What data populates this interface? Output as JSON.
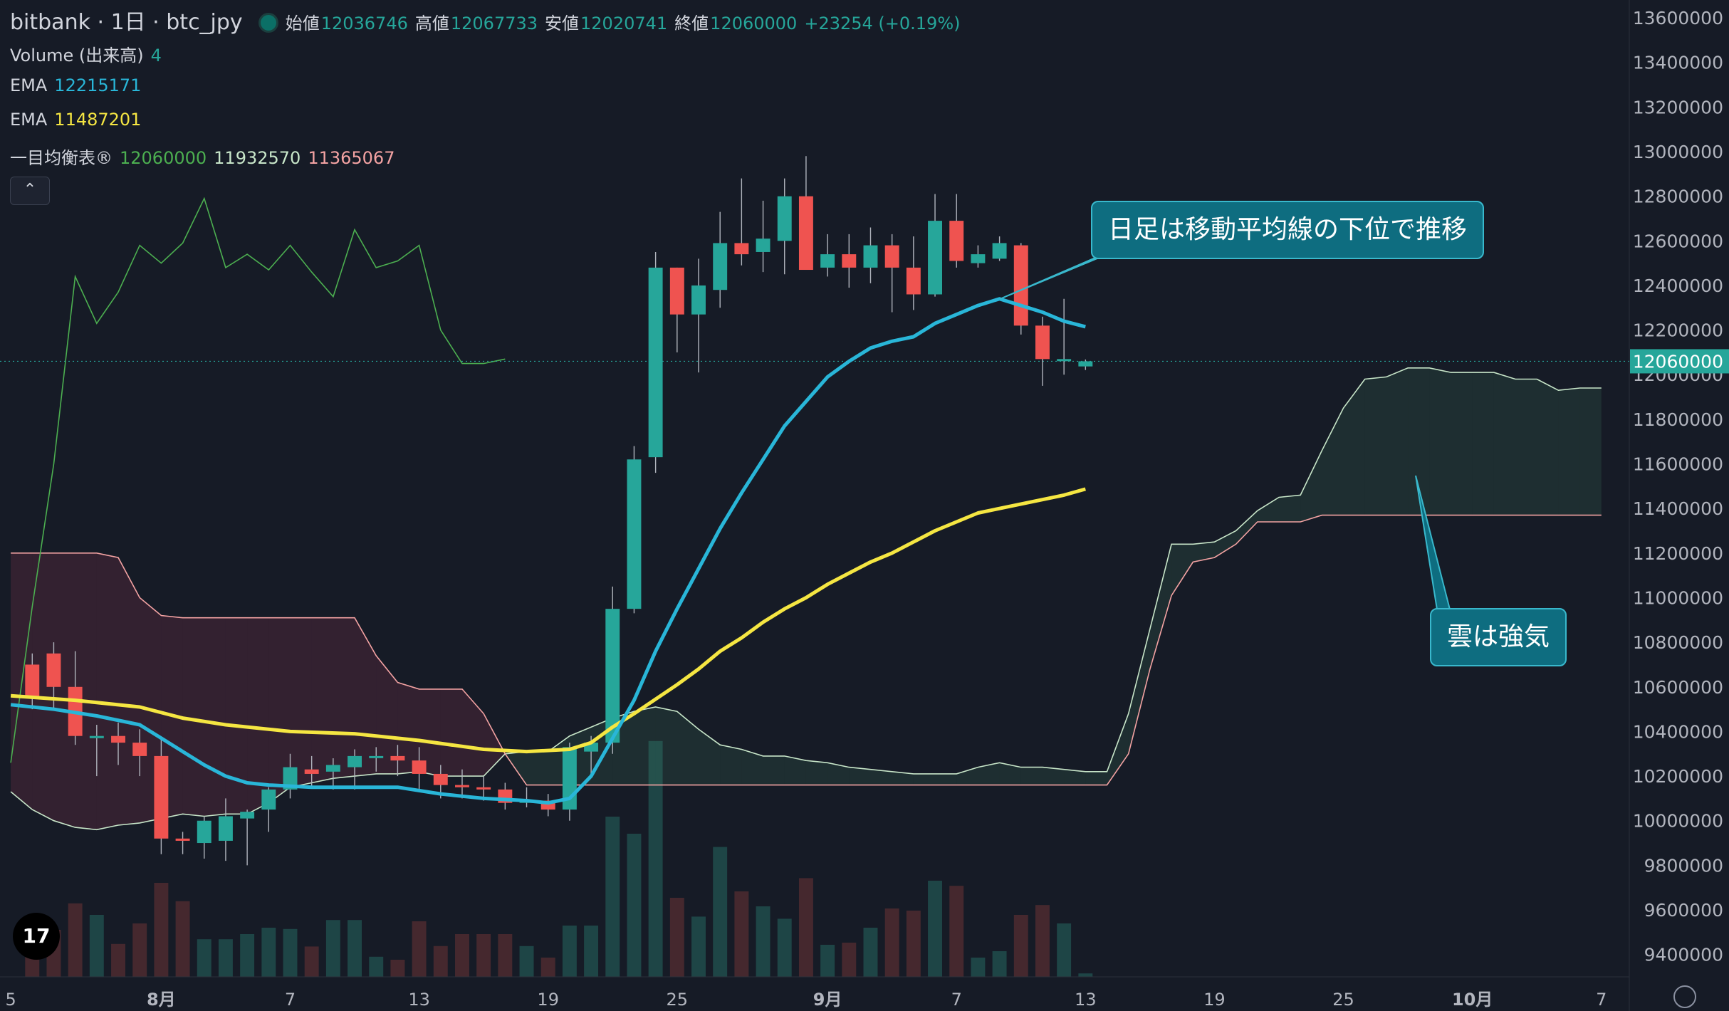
{
  "header": {
    "symbol": "bitbank · 1日 · btc_jpy",
    "open_label": "始値",
    "open": "12036746",
    "high_label": "高値",
    "high": "12067733",
    "low_label": "安値",
    "low": "12020741",
    "close_label": "終値",
    "close": "12060000",
    "change": "+23254 (+0.19%)"
  },
  "indicators": {
    "volume_label": "Volume (出来高)",
    "volume_value": "4",
    "ema1_label": "EMA",
    "ema1_value": "12215171",
    "ema2_label": "EMA",
    "ema2_value": "11487201",
    "ichimoku_label": "一目均衡表®",
    "ichimoku_v1": "12060000",
    "ichimoku_v2": "11932570",
    "ichimoku_v3": "11365067"
  },
  "collapse_icon": "chevron-up-icon",
  "callouts": {
    "top": "日足は移動平均線の下位で推移",
    "bottom": "雲は強気"
  },
  "logo_text": "17",
  "colors": {
    "background": "#161b26",
    "up": "#26a69a",
    "down": "#ef5350",
    "ema_fast": "#29b6d8",
    "ema_slow": "#f5e642",
    "chikou": "#4caf50",
    "senkou_a": "#c8e6c9",
    "senkou_b": "#f4a3a3",
    "callout": "#0e6d80"
  },
  "chart_data": {
    "type": "candlestick",
    "y_ticks": [
      13600000,
      13400000,
      13200000,
      13000000,
      12800000,
      12600000,
      12400000,
      12200000,
      12000000,
      11800000,
      11600000,
      11400000,
      11200000,
      11000000,
      10800000,
      10600000,
      10400000,
      10200000,
      10000000,
      9800000,
      9600000,
      9400000
    ],
    "ylim": [
      9300000,
      13680000
    ],
    "last_price_label": "12060000",
    "last_price": 12060000,
    "x_ticks": [
      {
        "label": "5",
        "day": -1
      },
      {
        "label": "8月",
        "day": 6
      },
      {
        "label": "7",
        "day": 12
      },
      {
        "label": "13",
        "day": 18
      },
      {
        "label": "19",
        "day": 24
      },
      {
        "label": "25",
        "day": 30
      },
      {
        "label": "9月",
        "day": 37
      },
      {
        "label": "7",
        "day": 43
      },
      {
        "label": "13",
        "day": 49
      },
      {
        "label": "19",
        "day": 55
      },
      {
        "label": "25",
        "day": 61
      },
      {
        "label": "10月",
        "day": 67
      },
      {
        "label": "7",
        "day": 73
      }
    ],
    "x_range_days": [
      -1.5,
      74.3
    ],
    "candles": [
      [
        0,
        10700000,
        10550000,
        10750000,
        10500000,
        1.1
      ],
      [
        1,
        10750000,
        10600000,
        10800000,
        10500000,
        1.1
      ],
      [
        2,
        10600000,
        10380000,
        10760000,
        10340000,
        1.72
      ],
      [
        3,
        10370000,
        10380000,
        10430000,
        10200000,
        1.45
      ],
      [
        4,
        10380000,
        10350000,
        10440000,
        10250000,
        0.77
      ],
      [
        5,
        10350000,
        10290000,
        10410000,
        10200000,
        1.25
      ],
      [
        6,
        10290000,
        9920000,
        10370000,
        9850000,
        2.2
      ],
      [
        7,
        9920000,
        9910000,
        9950000,
        9850000,
        1.77
      ],
      [
        8,
        9900000,
        10000000,
        10020000,
        9830000,
        0.88
      ],
      [
        9,
        9910000,
        10020000,
        10100000,
        9820000,
        0.88
      ],
      [
        10,
        10010000,
        10040000,
        10050000,
        9800000,
        1.0
      ],
      [
        11,
        10050000,
        10140000,
        10150000,
        9950000,
        1.15
      ],
      [
        12,
        10140000,
        10240000,
        10300000,
        10100000,
        1.12
      ],
      [
        13,
        10230000,
        10210000,
        10290000,
        10150000,
        0.71
      ],
      [
        14,
        10220000,
        10250000,
        10280000,
        10140000,
        1.33
      ],
      [
        15,
        10240000,
        10290000,
        10320000,
        10140000,
        1.33
      ],
      [
        16,
        10290000,
        10290000,
        10330000,
        10220000,
        0.47
      ],
      [
        17,
        10290000,
        10270000,
        10340000,
        10200000,
        0.4
      ],
      [
        18,
        10270000,
        10210000,
        10330000,
        10140000,
        1.3
      ],
      [
        19,
        10210000,
        10160000,
        10250000,
        10100000,
        0.72
      ],
      [
        20,
        10160000,
        10150000,
        10230000,
        10100000,
        1.0
      ],
      [
        21,
        10150000,
        10140000,
        10200000,
        10090000,
        1.0
      ],
      [
        22,
        10140000,
        10080000,
        10170000,
        10050000,
        1.0
      ],
      [
        23,
        10080000,
        10090000,
        10150000,
        10060000,
        0.72
      ],
      [
        24,
        10090000,
        10050000,
        10120000,
        10020000,
        0.45
      ],
      [
        25,
        10050000,
        10330000,
        10350000,
        10000000,
        1.2
      ],
      [
        26,
        10310000,
        10350000,
        10380000,
        10200000,
        1.2
      ],
      [
        27,
        10350000,
        10950000,
        11050000,
        10300000,
        3.75
      ],
      [
        28,
        10950000,
        11620000,
        11680000,
        10930000,
        3.35
      ],
      [
        29,
        11630000,
        12480000,
        12550000,
        11560000,
        5.52
      ],
      [
        30,
        12480000,
        12270000,
        12480000,
        12100000,
        1.85
      ],
      [
        31,
        12270000,
        12400000,
        12520000,
        12010000,
        1.41
      ],
      [
        32,
        12380000,
        12590000,
        12730000,
        12300000,
        3.04
      ],
      [
        33,
        12590000,
        12540000,
        12880000,
        12490000,
        2.0
      ],
      [
        34,
        12550000,
        12610000,
        12780000,
        12460000,
        1.65
      ],
      [
        35,
        12600000,
        12800000,
        12880000,
        12450000,
        1.36
      ],
      [
        36,
        12800000,
        12470000,
        12980000,
        12470000,
        2.31
      ],
      [
        37,
        12480000,
        12540000,
        12630000,
        12440000,
        0.75
      ],
      [
        38,
        12540000,
        12480000,
        12630000,
        12390000,
        0.8
      ],
      [
        39,
        12480000,
        12580000,
        12660000,
        12410000,
        1.15
      ],
      [
        40,
        12580000,
        12480000,
        12630000,
        12280000,
        1.6
      ],
      [
        41,
        12480000,
        12360000,
        12620000,
        12290000,
        1.55
      ],
      [
        42,
        12360000,
        12690000,
        12810000,
        12350000,
        2.25
      ],
      [
        43,
        12690000,
        12510000,
        12810000,
        12480000,
        2.13
      ],
      [
        44,
        12500000,
        12540000,
        12580000,
        12480000,
        0.45
      ],
      [
        45,
        12520000,
        12590000,
        12620000,
        12510000,
        0.6
      ],
      [
        46,
        12580000,
        12220000,
        12590000,
        12180000,
        1.45
      ],
      [
        47,
        12220000,
        12070000,
        12260000,
        11950000,
        1.68
      ],
      [
        48,
        12070000,
        12070000,
        12340000,
        12000000,
        1.25
      ],
      [
        49,
        12037000,
        12060000,
        12068000,
        12021000,
        0.08
      ]
    ],
    "ema_fast": [
      [
        -1,
        10520000
      ],
      [
        1,
        10500000
      ],
      [
        3,
        10470000
      ],
      [
        5,
        10430000
      ],
      [
        6,
        10370000
      ],
      [
        7,
        10310000
      ],
      [
        8,
        10250000
      ],
      [
        9,
        10200000
      ],
      [
        10,
        10170000
      ],
      [
        11,
        10160000
      ],
      [
        13,
        10150000
      ],
      [
        15,
        10150000
      ],
      [
        17,
        10150000
      ],
      [
        19,
        10120000
      ],
      [
        20,
        10110000
      ],
      [
        21,
        10100000
      ],
      [
        23,
        10090000
      ],
      [
        24,
        10080000
      ],
      [
        25,
        10100000
      ],
      [
        26,
        10200000
      ],
      [
        27,
        10370000
      ],
      [
        28,
        10540000
      ],
      [
        29,
        10760000
      ],
      [
        30,
        10950000
      ],
      [
        31,
        11130000
      ],
      [
        32,
        11310000
      ],
      [
        33,
        11470000
      ],
      [
        34,
        11620000
      ],
      [
        35,
        11770000
      ],
      [
        36,
        11880000
      ],
      [
        37,
        11990000
      ],
      [
        38,
        12060000
      ],
      [
        39,
        12120000
      ],
      [
        40,
        12150000
      ],
      [
        41,
        12170000
      ],
      [
        42,
        12230000
      ],
      [
        43,
        12270000
      ],
      [
        44,
        12310000
      ],
      [
        45,
        12340000
      ],
      [
        46,
        12310000
      ],
      [
        47,
        12280000
      ],
      [
        48,
        12240000
      ],
      [
        49,
        12215000
      ]
    ],
    "ema_slow": [
      [
        -1,
        10560000
      ],
      [
        2,
        10540000
      ],
      [
        5,
        10510000
      ],
      [
        7,
        10460000
      ],
      [
        9,
        10430000
      ],
      [
        12,
        10400000
      ],
      [
        15,
        10390000
      ],
      [
        18,
        10360000
      ],
      [
        21,
        10320000
      ],
      [
        23,
        10310000
      ],
      [
        25,
        10320000
      ],
      [
        26,
        10350000
      ],
      [
        27,
        10420000
      ],
      [
        28,
        10480000
      ],
      [
        30,
        10610000
      ],
      [
        31,
        10680000
      ],
      [
        32,
        10760000
      ],
      [
        33,
        10820000
      ],
      [
        34,
        10890000
      ],
      [
        35,
        10950000
      ],
      [
        36,
        11000000
      ],
      [
        37,
        11060000
      ],
      [
        38,
        11110000
      ],
      [
        39,
        11160000
      ],
      [
        40,
        11200000
      ],
      [
        41,
        11250000
      ],
      [
        42,
        11300000
      ],
      [
        43,
        11340000
      ],
      [
        44,
        11380000
      ],
      [
        45,
        11400000
      ],
      [
        46,
        11420000
      ],
      [
        47,
        11440000
      ],
      [
        48,
        11460000
      ],
      [
        49,
        11487000
      ]
    ],
    "chikou": [
      [
        -1,
        10260000
      ],
      [
        0,
        10960000
      ],
      [
        1,
        11600000
      ],
      [
        2,
        12440000
      ],
      [
        3,
        12230000
      ],
      [
        4,
        12370000
      ],
      [
        5,
        12580000
      ],
      [
        6,
        12500000
      ],
      [
        7,
        12590000
      ],
      [
        8,
        12790000
      ],
      [
        9,
        12480000
      ],
      [
        10,
        12540000
      ],
      [
        11,
        12470000
      ],
      [
        12,
        12580000
      ],
      [
        13,
        12460000
      ],
      [
        14,
        12350000
      ],
      [
        15,
        12650000
      ],
      [
        16,
        12480000
      ],
      [
        17,
        12510000
      ],
      [
        18,
        12580000
      ],
      [
        19,
        12200000
      ],
      [
        20,
        12050000
      ],
      [
        21,
        12050000
      ],
      [
        22,
        12070000
      ]
    ],
    "senkou_a": [
      [
        -1,
        10130000
      ],
      [
        0,
        10050000
      ],
      [
        1,
        10000000
      ],
      [
        2,
        9970000
      ],
      [
        3,
        9960000
      ],
      [
        4,
        9980000
      ],
      [
        5,
        9990000
      ],
      [
        6,
        10010000
      ],
      [
        7,
        10030000
      ],
      [
        8,
        10020000
      ],
      [
        9,
        10030000
      ],
      [
        10,
        10030000
      ],
      [
        11,
        10080000
      ],
      [
        12,
        10150000
      ],
      [
        13,
        10170000
      ],
      [
        14,
        10190000
      ],
      [
        15,
        10200000
      ],
      [
        16,
        10210000
      ],
      [
        17,
        10210000
      ],
      [
        18,
        10220000
      ],
      [
        19,
        10200000
      ],
      [
        20,
        10200000
      ],
      [
        21,
        10200000
      ],
      [
        22,
        10300000
      ],
      [
        23,
        10310000
      ],
      [
        24,
        10310000
      ],
      [
        25,
        10380000
      ],
      [
        26,
        10420000
      ],
      [
        27,
        10460000
      ],
      [
        28,
        10490000
      ],
      [
        29,
        10510000
      ],
      [
        30,
        10490000
      ],
      [
        31,
        10410000
      ],
      [
        32,
        10340000
      ],
      [
        33,
        10320000
      ],
      [
        34,
        10290000
      ],
      [
        35,
        10290000
      ],
      [
        36,
        10270000
      ],
      [
        37,
        10260000
      ],
      [
        38,
        10240000
      ],
      [
        39,
        10230000
      ],
      [
        40,
        10220000
      ],
      [
        41,
        10210000
      ],
      [
        42,
        10210000
      ],
      [
        43,
        10210000
      ],
      [
        44,
        10240000
      ],
      [
        45,
        10260000
      ],
      [
        46,
        10240000
      ],
      [
        47,
        10240000
      ],
      [
        48,
        10230000
      ],
      [
        49,
        10220000
      ],
      [
        50,
        10220000
      ],
      [
        51,
        10480000
      ],
      [
        52,
        10860000
      ],
      [
        53,
        11240000
      ],
      [
        54,
        11240000
      ],
      [
        55,
        11250000
      ],
      [
        56,
        11300000
      ],
      [
        57,
        11390000
      ],
      [
        58,
        11450000
      ],
      [
        59,
        11460000
      ],
      [
        60,
        11660000
      ],
      [
        61,
        11850000
      ],
      [
        62,
        11980000
      ],
      [
        63,
        11990000
      ],
      [
        64,
        12030000
      ],
      [
        65,
        12030000
      ],
      [
        66,
        12010000
      ],
      [
        67,
        12010000
      ],
      [
        68,
        12010000
      ],
      [
        69,
        11980000
      ],
      [
        70,
        11980000
      ],
      [
        71,
        11930000
      ],
      [
        72,
        11940000
      ],
      [
        73,
        11940000
      ]
    ],
    "senkou_b": [
      [
        -1,
        11200000
      ],
      [
        0,
        11200000
      ],
      [
        1,
        11200000
      ],
      [
        2,
        11200000
      ],
      [
        3,
        11200000
      ],
      [
        4,
        11180000
      ],
      [
        5,
        11000000
      ],
      [
        6,
        10920000
      ],
      [
        7,
        10910000
      ],
      [
        8,
        10910000
      ],
      [
        9,
        10910000
      ],
      [
        10,
        10910000
      ],
      [
        11,
        10910000
      ],
      [
        12,
        10910000
      ],
      [
        13,
        10910000
      ],
      [
        14,
        10910000
      ],
      [
        15,
        10910000
      ],
      [
        16,
        10740000
      ],
      [
        17,
        10620000
      ],
      [
        18,
        10590000
      ],
      [
        19,
        10590000
      ],
      [
        20,
        10590000
      ],
      [
        21,
        10480000
      ],
      [
        22,
        10300000
      ],
      [
        23,
        10160000
      ],
      [
        24,
        10160000
      ],
      [
        25,
        10160000
      ],
      [
        26,
        10160000
      ],
      [
        27,
        10160000
      ],
      [
        28,
        10160000
      ],
      [
        29,
        10160000
      ],
      [
        30,
        10160000
      ],
      [
        31,
        10160000
      ],
      [
        32,
        10160000
      ],
      [
        33,
        10160000
      ],
      [
        34,
        10160000
      ],
      [
        35,
        10160000
      ],
      [
        36,
        10160000
      ],
      [
        37,
        10160000
      ],
      [
        38,
        10160000
      ],
      [
        39,
        10160000
      ],
      [
        40,
        10160000
      ],
      [
        41,
        10160000
      ],
      [
        42,
        10160000
      ],
      [
        43,
        10160000
      ],
      [
        44,
        10160000
      ],
      [
        45,
        10160000
      ],
      [
        46,
        10160000
      ],
      [
        47,
        10160000
      ],
      [
        48,
        10160000
      ],
      [
        49,
        10160000
      ],
      [
        50,
        10160000
      ],
      [
        51,
        10300000
      ],
      [
        52,
        10680000
      ],
      [
        53,
        11010000
      ],
      [
        54,
        11160000
      ],
      [
        55,
        11180000
      ],
      [
        56,
        11240000
      ],
      [
        57,
        11340000
      ],
      [
        58,
        11340000
      ],
      [
        59,
        11340000
      ],
      [
        60,
        11370000
      ],
      [
        61,
        11370000
      ],
      [
        62,
        11370000
      ],
      [
        63,
        11370000
      ],
      [
        64,
        11370000
      ],
      [
        65,
        11370000
      ],
      [
        66,
        11370000
      ],
      [
        67,
        11370000
      ],
      [
        68,
        11370000
      ],
      [
        69,
        11370000
      ],
      [
        70,
        11370000
      ],
      [
        71,
        11370000
      ],
      [
        72,
        11370000
      ],
      [
        73,
        11370000
      ]
    ]
  }
}
